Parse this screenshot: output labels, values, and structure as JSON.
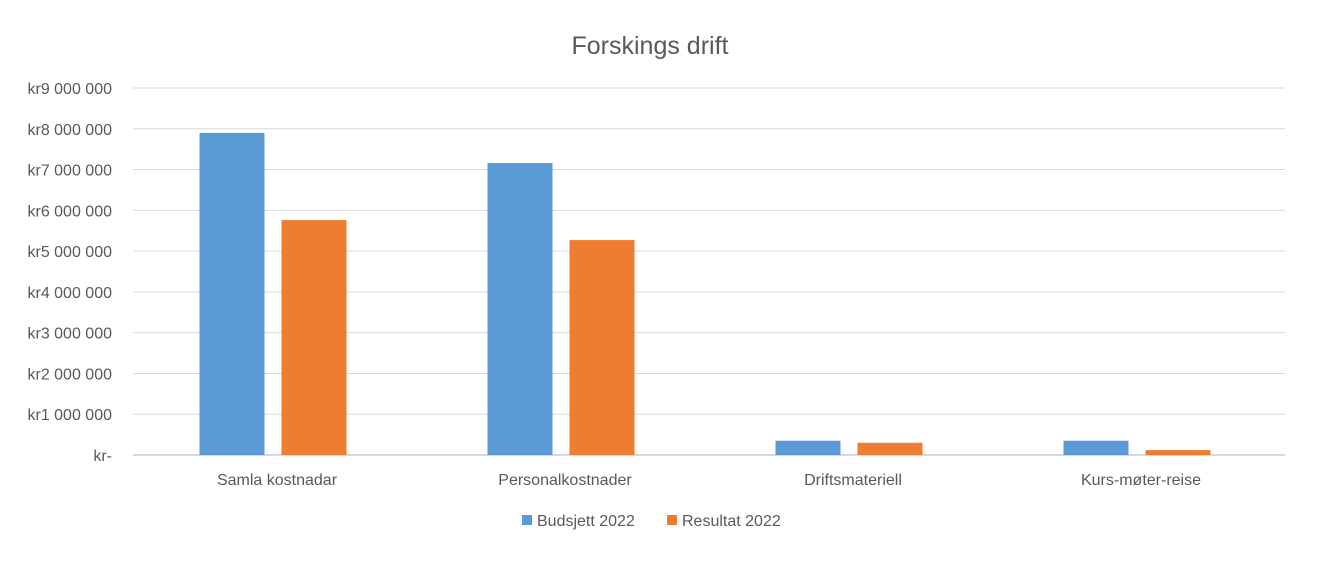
{
  "chart_data": {
    "type": "bar",
    "title": "Forskings drift",
    "categories": [
      "Samla kostnadar",
      "Personalkostnader",
      "Driftsmateriell",
      "Kurs-møter-reise"
    ],
    "series": [
      {
        "name": "Budsjett 2022",
        "color": "#5B9BD5",
        "values": [
          7900000,
          7160000,
          350000,
          350000
        ]
      },
      {
        "name": "Resultat 2022",
        "color": "#ED7D31",
        "values": [
          5760000,
          5270000,
          300000,
          120000
        ]
      }
    ],
    "ylim": [
      0,
      9000000
    ],
    "yticks": [
      0,
      1000000,
      2000000,
      3000000,
      4000000,
      5000000,
      6000000,
      7000000,
      8000000,
      9000000
    ],
    "ytick_labels": [
      "kr-",
      "kr1 000 000",
      "kr2 000 000",
      "kr3 000 000",
      "kr4 000 000",
      "kr5 000 000",
      "kr6 000 000",
      "kr7 000 000",
      "kr8 000 000",
      "kr9 000 000"
    ],
    "grid": true,
    "legend": "bottom",
    "xlabel": "",
    "ylabel": ""
  }
}
